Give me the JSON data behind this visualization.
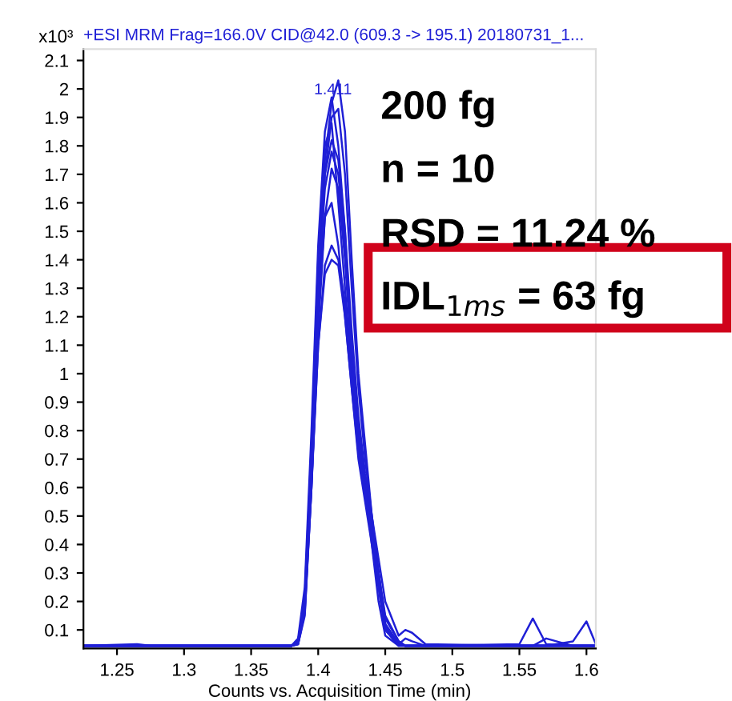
{
  "chart_data": {
    "type": "line",
    "title": "+ESI MRM Frag=166.0V CID@42.0 (609.3 -> 195.1) 20180731_1...",
    "xlabel": "Counts vs. Acquisition Time (min)",
    "ylabel": "x10³",
    "x": [
      1.225,
      1.265,
      1.275,
      1.38,
      1.385,
      1.39,
      1.395,
      1.4,
      1.405,
      1.41,
      1.415,
      1.42,
      1.425,
      1.43,
      1.435,
      1.44,
      1.445,
      1.45,
      1.46,
      1.465,
      1.47,
      1.48,
      1.55,
      1.56,
      1.57,
      1.59,
      1.6,
      1.607
    ],
    "series": [
      {
        "color": "#1f1fd6",
        "values": [
          0.044,
          0.044,
          0.044,
          0.044,
          0.06,
          0.2,
          0.7,
          1.3,
          1.75,
          1.95,
          2.03,
          1.85,
          1.4,
          1.0,
          0.75,
          0.5,
          0.3,
          0.12,
          0.05,
          0.044,
          0.044,
          0.044,
          0.044,
          0.044,
          0.044,
          0.044,
          0.044,
          0.044
        ]
      },
      {
        "color": "#1f1fd6",
        "values": [
          0.044,
          0.05,
          0.044,
          0.044,
          0.07,
          0.25,
          0.8,
          1.45,
          1.85,
          1.97,
          1.8,
          1.5,
          1.1,
          0.8,
          0.6,
          0.4,
          0.2,
          0.08,
          0.044,
          0.044,
          0.044,
          0.044,
          0.044,
          0.044,
          0.044,
          0.044,
          0.044,
          0.044
        ]
      },
      {
        "color": "#1f1fd6",
        "values": [
          0.044,
          0.044,
          0.044,
          0.044,
          0.05,
          0.15,
          0.6,
          1.2,
          1.7,
          1.9,
          1.93,
          1.7,
          1.3,
          0.95,
          0.7,
          0.5,
          0.3,
          0.12,
          0.05,
          0.044,
          0.044,
          0.044,
          0.05,
          0.14,
          0.05,
          0.044,
          0.044,
          0.044
        ]
      },
      {
        "color": "#1f1fd6",
        "values": [
          0.044,
          0.044,
          0.044,
          0.044,
          0.06,
          0.22,
          0.75,
          1.4,
          1.8,
          1.88,
          1.6,
          1.3,
          1.0,
          0.75,
          0.6,
          0.45,
          0.25,
          0.1,
          0.044,
          0.044,
          0.044,
          0.044,
          0.044,
          0.044,
          0.044,
          0.06,
          0.13,
          0.05
        ]
      },
      {
        "color": "#1f1fd6",
        "values": [
          0.044,
          0.044,
          0.044,
          0.044,
          0.055,
          0.18,
          0.65,
          1.25,
          1.7,
          1.82,
          1.75,
          1.5,
          1.15,
          0.85,
          0.65,
          0.5,
          0.35,
          0.2,
          0.08,
          0.1,
          0.09,
          0.05,
          0.044,
          0.044,
          0.044,
          0.044,
          0.044,
          0.044
        ]
      },
      {
        "color": "#1f1fd6",
        "values": [
          0.044,
          0.044,
          0.044,
          0.044,
          0.06,
          0.2,
          0.7,
          1.3,
          1.65,
          1.78,
          1.7,
          1.45,
          1.1,
          0.8,
          0.62,
          0.48,
          0.3,
          0.15,
          0.06,
          0.044,
          0.044,
          0.044,
          0.044,
          0.044,
          0.07,
          0.044,
          0.044,
          0.044
        ]
      },
      {
        "color": "#1f1fd6",
        "values": [
          0.044,
          0.044,
          0.044,
          0.044,
          0.05,
          0.16,
          0.6,
          1.15,
          1.55,
          1.72,
          1.65,
          1.4,
          1.05,
          0.78,
          0.6,
          0.42,
          0.26,
          0.11,
          0.05,
          0.044,
          0.044,
          0.044,
          0.044,
          0.044,
          0.044,
          0.044,
          0.044,
          0.044
        ]
      },
      {
        "color": "#1f1fd6",
        "values": [
          0.044,
          0.044,
          0.044,
          0.044,
          0.06,
          0.2,
          0.68,
          1.2,
          1.55,
          1.6,
          1.45,
          1.2,
          0.95,
          0.7,
          0.55,
          0.4,
          0.25,
          0.1,
          0.05,
          0.07,
          0.06,
          0.044,
          0.044,
          0.044,
          0.044,
          0.044,
          0.044,
          0.044
        ]
      },
      {
        "color": "#1f1fd6",
        "values": [
          0.044,
          0.044,
          0.044,
          0.044,
          0.05,
          0.17,
          0.6,
          1.1,
          1.38,
          1.45,
          1.4,
          1.25,
          1.0,
          0.75,
          0.6,
          0.45,
          0.3,
          0.14,
          0.06,
          0.044,
          0.044,
          0.044,
          0.044,
          0.044,
          0.044,
          0.044,
          0.044,
          0.044
        ]
      },
      {
        "color": "#1f1fd6",
        "values": [
          0.044,
          0.044,
          0.044,
          0.044,
          0.06,
          0.19,
          0.62,
          1.1,
          1.35,
          1.4,
          1.38,
          1.2,
          0.95,
          0.72,
          0.58,
          0.44,
          0.28,
          0.12,
          0.05,
          0.044,
          0.044,
          0.044,
          0.044,
          0.044,
          0.044,
          0.044,
          0.044,
          0.044
        ]
      }
    ],
    "xlim": [
      1.225,
      1.607
    ],
    "ylim": [
      0.035,
      2.14
    ],
    "xticks": [
      1.25,
      1.3,
      1.35,
      1.4,
      1.45,
      1.5,
      1.55,
      1.6
    ],
    "yticks": [
      0.1,
      0.2,
      0.3,
      0.4,
      0.5,
      0.6,
      0.7,
      0.8,
      0.9,
      1,
      1.1,
      1.2,
      1.3,
      1.4,
      1.5,
      1.6,
      1.7,
      1.8,
      1.9,
      2,
      2.1
    ],
    "grid": false,
    "marker": "none",
    "line_style": "solid",
    "annotations": [
      {
        "text": "1.411",
        "x": 1.411,
        "y": 1.97
      },
      "200 fg",
      "n = 10",
      "RSD = 11.24 %",
      "IDL$_{1ms}$ = 63 fg"
    ]
  }
}
